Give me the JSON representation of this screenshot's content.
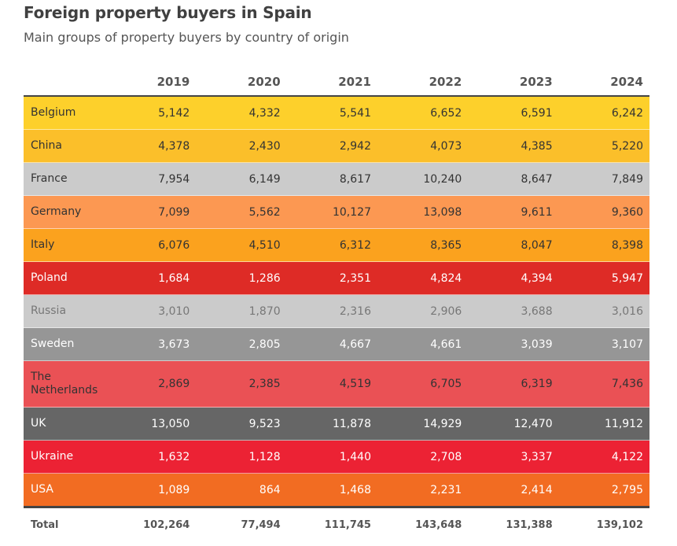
{
  "title": "Foreign property buyers in Spain",
  "subtitle": "Main groups of property buyers by country of origin",
  "chart_data": {
    "type": "table",
    "columns": [
      "",
      "2019",
      "2020",
      "2021",
      "2022",
      "2023",
      "2024"
    ],
    "rows": [
      {
        "name": "Belgium",
        "values": [
          "5,142",
          "4,332",
          "5,541",
          "6,652",
          "6,591",
          "6,242"
        ],
        "color": "#fdd02b",
        "text": "#333333"
      },
      {
        "name": "China",
        "values": [
          "4,378",
          "2,430",
          "2,942",
          "4,073",
          "4,385",
          "5,220"
        ],
        "color": "#fbbf2a",
        "text": "#333333"
      },
      {
        "name": "France",
        "values": [
          "7,954",
          "6,149",
          "8,617",
          "10,240",
          "8,647",
          "7,849"
        ],
        "color": "#cbcbcb",
        "text": "#333333"
      },
      {
        "name": "Germany",
        "values": [
          "7,099",
          "5,562",
          "10,127",
          "13,098",
          "9,611",
          "9,360"
        ],
        "color": "#fc9852",
        "text": "#333333"
      },
      {
        "name": "Italy",
        "values": [
          "6,076",
          "4,510",
          "6,312",
          "8,365",
          "8,047",
          "8,398"
        ],
        "color": "#fba21e",
        "text": "#333333"
      },
      {
        "name": "Poland",
        "values": [
          "1,684",
          "1,286",
          "2,351",
          "4,824",
          "4,394",
          "5,947"
        ],
        "color": "#de2b26",
        "text": "#ffffff"
      },
      {
        "name": "Russia",
        "values": [
          "3,010",
          "1,870",
          "2,316",
          "2,906",
          "3,688",
          "3,016"
        ],
        "color": "#cbcbcb",
        "text": "#777777"
      },
      {
        "name": "Sweden",
        "values": [
          "3,673",
          "2,805",
          "4,667",
          "4,661",
          "3,039",
          "3,107"
        ],
        "color": "#969696",
        "text": "#ffffff"
      },
      {
        "name": "The Netherlands",
        "values": [
          "2,869",
          "2,385",
          "4,519",
          "6,705",
          "6,319",
          "7,436"
        ],
        "color": "#ea5155",
        "text": "#333333"
      },
      {
        "name": "UK",
        "values": [
          "13,050",
          "9,523",
          "11,878",
          "14,929",
          "12,470",
          "11,912"
        ],
        "color": "#666666",
        "text": "#ffffff"
      },
      {
        "name": "Ukraine",
        "values": [
          "1,632",
          "1,128",
          "1,440",
          "2,708",
          "3,337",
          "4,122"
        ],
        "color": "#ec2234",
        "text": "#ffffff"
      },
      {
        "name": "USA",
        "values": [
          "1,089",
          "864",
          "1,468",
          "2,231",
          "2,414",
          "2,795"
        ],
        "color": "#f26c22",
        "text": "#ffffff"
      }
    ],
    "total": {
      "name": "Total",
      "values": [
        "102,264",
        "77,494",
        "111,745",
        "143,648",
        "131,388",
        "139,102"
      ]
    }
  }
}
